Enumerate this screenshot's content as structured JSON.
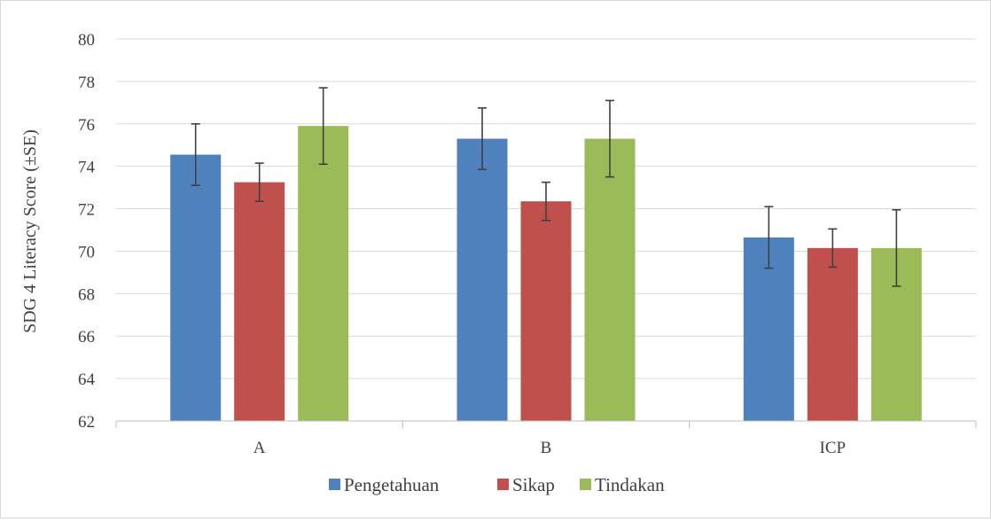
{
  "chart_data": {
    "type": "bar",
    "categories": [
      "A",
      "B",
      "ICP"
    ],
    "series": [
      {
        "name": "Pengetahuan",
        "color": "#4f81bd",
        "values": [
          74.55,
          75.3,
          70.65
        ],
        "errors": [
          1.45,
          1.45,
          1.45
        ]
      },
      {
        "name": "Sikap",
        "color": "#c0504d",
        "values": [
          73.25,
          72.35,
          70.15
        ],
        "errors": [
          0.9,
          0.9,
          0.9
        ]
      },
      {
        "name": "Tindakan",
        "color": "#9bbb59",
        "values": [
          75.9,
          75.3,
          70.15
        ],
        "errors": [
          1.8,
          1.8,
          1.8
        ]
      }
    ],
    "ylabel": "SDG 4 Literacy Score (±SE)",
    "xlabel": "",
    "ylim": [
      62,
      80
    ],
    "yticks": [
      "62",
      "64",
      "66",
      "68",
      "70",
      "72",
      "74",
      "76",
      "78",
      "80"
    ],
    "grid": true,
    "legend_position": "bottom",
    "gridline_color": "#d9d9d9",
    "errorbar_color": "#404040"
  }
}
